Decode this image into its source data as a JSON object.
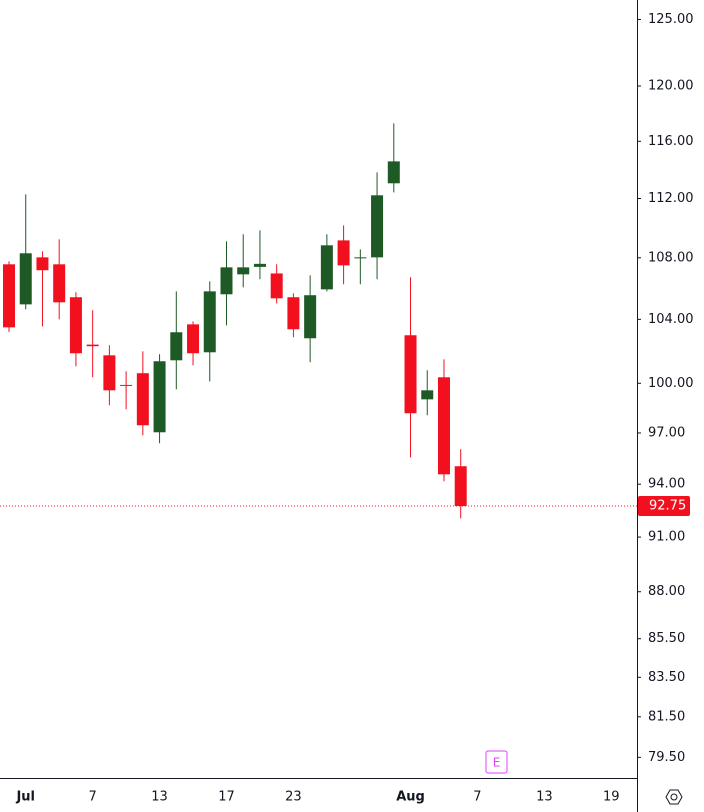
{
  "chart_data": {
    "type": "candlestick",
    "categories": [
      null,
      "Jul",
      null,
      null,
      null,
      "7",
      null,
      null,
      null,
      "13",
      null,
      null,
      null,
      "17",
      null,
      null,
      null,
      "23",
      null,
      null,
      null,
      null,
      null,
      null,
      "Aug",
      null,
      null,
      null,
      "7",
      null,
      null,
      null,
      "13",
      null,
      null,
      null,
      "19",
      null
    ],
    "series": [
      {
        "name": "open",
        "values": [
          107.57,
          104.96,
          108.03,
          107.57,
          105.42,
          102.4,
          101.73,
          99.9,
          100.62,
          97.04,
          101.42,
          103.68,
          101.92,
          105.61,
          106.91,
          107.4,
          106.97,
          105.42,
          102.8,
          105.93,
          109.16,
          108.0,
          108.03,
          113.05,
          102.99,
          99.02,
          100.37,
          95.04,
          null,
          null,
          null,
          null,
          null,
          null,
          null,
          null,
          null,
          null
        ]
      },
      {
        "name": "high",
        "values": [
          107.77,
          112.29,
          108.43,
          109.23,
          105.74,
          104.58,
          102.36,
          100.74,
          101.98,
          101.8,
          105.8,
          103.87,
          106.45,
          109.1,
          109.57,
          109.83,
          107.57,
          105.67,
          106.85,
          109.57,
          110.17,
          108.56,
          113.81,
          117.28,
          106.72,
          100.8,
          101.48,
          96.04,
          null,
          null,
          null,
          null,
          null,
          null,
          null,
          null,
          null,
          null
        ]
      },
      {
        "name": "low",
        "values": [
          103.2,
          104.64,
          103.55,
          104.0,
          101.05,
          100.37,
          98.66,
          98.42,
          96.86,
          96.39,
          99.63,
          101.11,
          100.12,
          103.62,
          106.06,
          106.59,
          105.02,
          102.86,
          101.3,
          105.8,
          106.26,
          106.26,
          106.59,
          112.42,
          95.56,
          98.06,
          94.17,
          92.05,
          null,
          null,
          null,
          null,
          null,
          null,
          null,
          null,
          null,
          null
        ]
      },
      {
        "name": "close",
        "values": [
          103.49,
          108.3,
          107.18,
          105.09,
          101.86,
          102.3,
          99.57,
          99.85,
          97.46,
          101.36,
          103.18,
          101.86,
          105.8,
          107.37,
          107.37,
          107.6,
          105.35,
          103.37,
          105.55,
          108.83,
          107.5,
          108.03,
          112.22,
          114.58,
          98.18,
          99.57,
          94.57,
          92.75,
          null,
          null,
          null,
          null,
          null,
          null,
          null,
          null,
          null,
          null
        ]
      }
    ],
    "up_color": "#1e5a25",
    "down_color": "#f2101f",
    "log_scale": true,
    "ylim": [
      78.5,
      126.5
    ],
    "yticks": [
      {
        "value": 125,
        "label": "125.00"
      },
      {
        "value": 120,
        "label": "120.00"
      },
      {
        "value": 116,
        "label": "116.00"
      },
      {
        "value": 112,
        "label": "112.00"
      },
      {
        "value": 108,
        "label": "108.00"
      },
      {
        "value": 104,
        "label": "104.00"
      },
      {
        "value": 100,
        "label": "100.00"
      },
      {
        "value": 97,
        "label": "97.00"
      },
      {
        "value": 94,
        "label": "94.00"
      },
      {
        "value": 91,
        "label": "91.00"
      },
      {
        "value": 88,
        "label": "88.00"
      },
      {
        "value": 85.5,
        "label": "85.50"
      },
      {
        "value": 83.5,
        "label": "83.50"
      },
      {
        "value": 81.5,
        "label": "81.50"
      },
      {
        "value": 79.5,
        "label": "79.50"
      }
    ],
    "last_price": 92.75,
    "annotations": [
      {
        "text": "E"
      }
    ]
  }
}
